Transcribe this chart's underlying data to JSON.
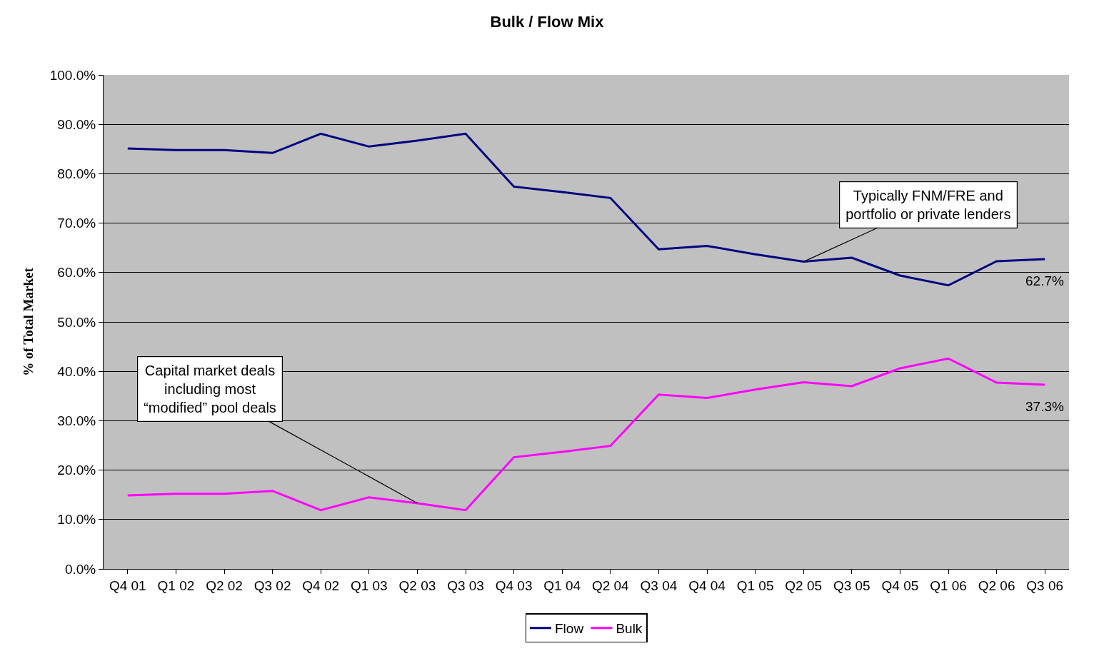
{
  "chart_data": {
    "type": "line",
    "title": "Bulk / Flow Mix",
    "ylabel": "% of Total Market",
    "categories": [
      "Q4 01",
      "Q1 02",
      "Q2 02",
      "Q3 02",
      "Q4 02",
      "Q1 03",
      "Q2 03",
      "Q3 03",
      "Q4 03",
      "Q1 04",
      "Q2 04",
      "Q3 04",
      "Q4 04",
      "Q1 05",
      "Q2 05",
      "Q3 05",
      "Q4 05",
      "Q1 06",
      "Q2 06",
      "Q3 06"
    ],
    "series": [
      {
        "name": "Flow",
        "color": "#000080",
        "values": [
          85.1,
          84.8,
          84.8,
          84.2,
          88.1,
          85.5,
          86.7,
          88.1,
          77.4,
          76.3,
          75.1,
          64.7,
          65.4,
          63.7,
          62.2,
          63.0,
          59.4,
          57.4,
          62.3,
          62.7
        ],
        "value_labels": [
          null,
          null,
          null,
          null,
          null,
          null,
          null,
          null,
          null,
          null,
          null,
          null,
          null,
          null,
          null,
          null,
          null,
          null,
          null,
          "62.7%"
        ]
      },
      {
        "name": "Bulk",
        "color": "#ff00ff",
        "values": [
          14.9,
          15.2,
          15.2,
          15.8,
          11.9,
          14.5,
          13.3,
          11.9,
          22.6,
          23.7,
          24.9,
          35.3,
          34.6,
          36.3,
          37.8,
          37.0,
          40.6,
          42.6,
          37.7,
          37.3
        ],
        "value_labels": [
          null,
          null,
          null,
          null,
          null,
          null,
          null,
          null,
          null,
          null,
          null,
          null,
          null,
          null,
          null,
          null,
          null,
          null,
          null,
          "37.3%"
        ]
      }
    ],
    "ylim": [
      0,
      100
    ],
    "yticks": [
      {
        "value": 0,
        "label": "0.0%"
      },
      {
        "value": 10,
        "label": "10.0%"
      },
      {
        "value": 20,
        "label": "20.0%"
      },
      {
        "value": 30,
        "label": "30.0%"
      },
      {
        "value": 40,
        "label": "40.0%"
      },
      {
        "value": 50,
        "label": "50.0%"
      },
      {
        "value": 60,
        "label": "60.0%"
      },
      {
        "value": 70,
        "label": "70.0%"
      },
      {
        "value": 80,
        "label": "80.0%"
      },
      {
        "value": 90,
        "label": "90.0%"
      },
      {
        "value": 100,
        "label": "100.0%"
      }
    ],
    "grid": "y",
    "legend": "bottom",
    "marker": "none",
    "line_style": "solid",
    "annotations": [
      {
        "text": "Typically FNM/FRE and\nportfolio or private lenders",
        "x": "Q2 05",
        "y": 62.2
      },
      {
        "text": "Capital market deals\nincluding most\n“modified” pool deals",
        "x": "Q2 03",
        "y": 13.3
      }
    ]
  }
}
